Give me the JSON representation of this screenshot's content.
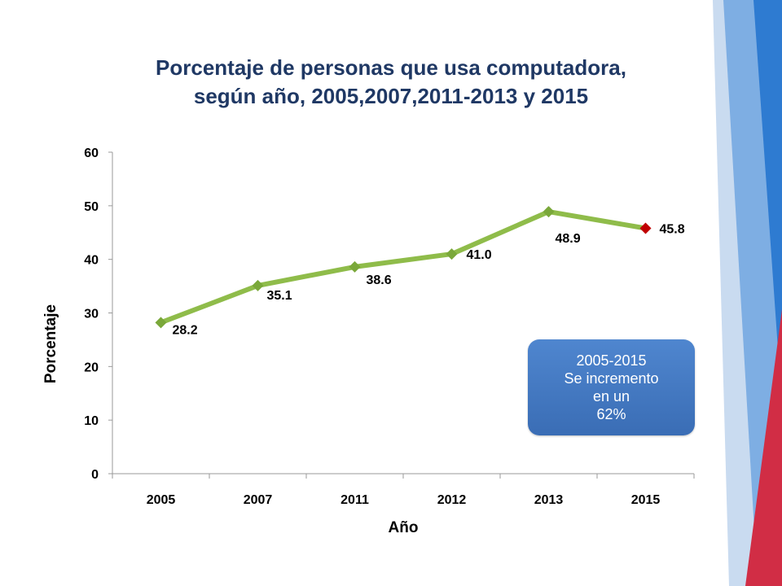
{
  "slide": {
    "title_line1": "Porcentaje de personas que usa computadora,",
    "title_line2": "según año, 2005,2007,2011-2013 y 2015"
  },
  "callout": {
    "line1": "2005-2015",
    "line2": "Se incremento",
    "line3": "en un",
    "line4": "62%"
  },
  "colors": {
    "title": "#1f3864",
    "line": "#8fbc4a",
    "marker": "#7aa83a",
    "last_marker": "#c00000",
    "callout": "#4a7fc8",
    "deco_blue": "#2e7bd1",
    "deco_red": "#d12d45"
  },
  "chart_data": {
    "type": "line",
    "categories": [
      "2005",
      "2007",
      "2011",
      "2012",
      "2013",
      "2015"
    ],
    "values": [
      28.2,
      35.1,
      38.6,
      41.0,
      48.9,
      45.8
    ],
    "data_labels": [
      "28.2",
      "35.1",
      "38.6",
      "41.0",
      "48.9",
      "45.8"
    ],
    "xlabel": "Año",
    "ylabel": "Porcentaje",
    "ylim": [
      0,
      60
    ],
    "yticks": [
      "0",
      "10",
      "20",
      "30",
      "40",
      "50",
      "60"
    ],
    "grid": false,
    "legend": "none"
  }
}
